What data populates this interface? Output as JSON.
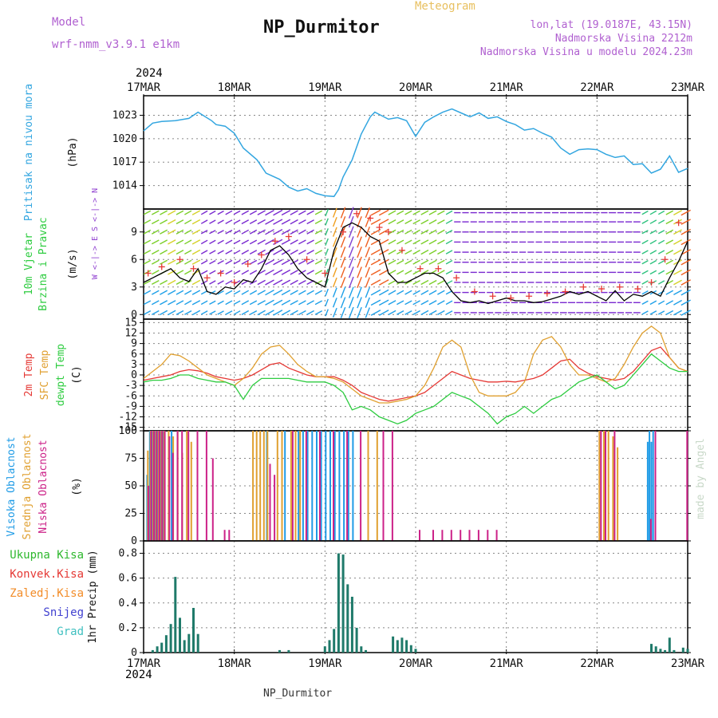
{
  "header": {
    "model_label": "Model",
    "model_name": "wrf-nmm_v3.9.1 e1km",
    "title": "NP_Durmitor",
    "subtitle": "Meteogram",
    "coords": "lon,lat (19.0187E, 43.15N)",
    "altitude": "Nadmorska Visina 2212m",
    "model_altitude": "Nadmorska Visina u modelu 2024.23m"
  },
  "footer": {
    "station": "NP_Durmitor",
    "credit": "made by Angel"
  },
  "time_axis": {
    "year": "2024",
    "labels": [
      "17MAR",
      "18MAR",
      "19MAR",
      "20MAR",
      "21MAR",
      "22MAR",
      "23MAR"
    ]
  },
  "colors": {
    "pressure": "#33a6e0",
    "wind_speed": "#000000",
    "gust": "#e53935",
    "t2m": "#e53935",
    "tsfc": "#e0a030",
    "dewpt": "#2ecc40",
    "cloud_high": "#1e9be6",
    "cloud_mid": "#e0a030",
    "cloud_low": "#cc2288",
    "precip_total": "#2eb82e",
    "precip_conv": "#e53935",
    "precip_frozen": "#f28c28",
    "precip_snow": "#4040d0",
    "precip_hail": "#40c0c0",
    "precip_bar": "#1f7a6a"
  },
  "chart_data": [
    {
      "type": "line",
      "id": "pressure",
      "ylabel": "Pritisak na nivou mora",
      "unit": "(hPa)",
      "ylim": [
        1011,
        1025.5
      ],
      "yticks": [
        1014,
        1017,
        1020,
        1023
      ],
      "x_days": [
        0,
        0.1,
        0.2,
        0.35,
        0.5,
        0.6,
        0.75,
        0.8,
        0.9,
        1.0,
        1.1,
        1.25,
        1.35,
        1.5,
        1.6,
        1.7,
        1.8,
        1.9,
        2.0,
        2.1,
        2.15,
        2.2,
        2.3,
        2.4,
        2.5,
        2.55,
        2.6,
        2.7,
        2.8,
        2.9,
        3.0,
        3.1,
        3.2,
        3.3,
        3.4,
        3.5,
        3.6,
        3.7,
        3.8,
        3.9,
        4.0,
        4.1,
        4.2,
        4.3,
        4.4,
        4.5,
        4.6,
        4.7,
        4.8,
        4.9,
        5.0,
        5.1,
        5.2,
        5.3,
        5.4,
        5.5,
        5.6,
        5.7,
        5.8,
        5.9,
        6.0
      ],
      "values": [
        1021,
        1022,
        1022.2,
        1022.3,
        1022.6,
        1023.4,
        1022.3,
        1021.8,
        1021.6,
        1020.7,
        1018.8,
        1017.3,
        1015.6,
        1014.8,
        1013.8,
        1013.3,
        1013.6,
        1013.0,
        1012.7,
        1012.6,
        1013.5,
        1015.1,
        1017.3,
        1020.6,
        1022.8,
        1023.4,
        1023.1,
        1022.5,
        1022.7,
        1022.3,
        1020.3,
        1022.1,
        1022.8,
        1023.4,
        1023.8,
        1023.3,
        1022.8,
        1023.3,
        1022.6,
        1022.8,
        1022.2,
        1021.8,
        1021.1,
        1021.3,
        1020.7,
        1020.2,
        1018.8,
        1018.0,
        1018.6,
        1018.7,
        1018.6,
        1018.0,
        1017.6,
        1017.8,
        1016.7,
        1016.8,
        1015.6,
        1016.1,
        1017.8,
        1015.7,
        1016.2
      ]
    },
    {
      "type": "line",
      "id": "wind",
      "ylabel": "10m Vjetar Brzina i Pravac",
      "unit": "(m/s)",
      "compass": "W <-|-> E  S <-|-> N",
      "ylim": [
        -0.5,
        11.5
      ],
      "yticks": [
        0,
        3,
        6,
        9
      ],
      "series": [
        {
          "role": "speed",
          "x_days": [
            0,
            0.1,
            0.2,
            0.3,
            0.4,
            0.5,
            0.6,
            0.7,
            0.8,
            0.9,
            1.0,
            1.1,
            1.2,
            1.3,
            1.4,
            1.5,
            1.6,
            1.7,
            1.8,
            1.9,
            2.0,
            2.1,
            2.2,
            2.3,
            2.4,
            2.5,
            2.6,
            2.7,
            2.8,
            2.9,
            3.0,
            3.1,
            3.2,
            3.3,
            3.4,
            3.5,
            3.6,
            3.7,
            3.8,
            3.9,
            4.0,
            4.1,
            4.2,
            4.3,
            4.4,
            4.5,
            4.6,
            4.7,
            4.8,
            4.9,
            5.0,
            5.1,
            5.2,
            5.3,
            5.4,
            5.5,
            5.6,
            5.7,
            5.8,
            5.9,
            6.0
          ],
          "values": [
            3.5,
            4.0,
            4.5,
            5.0,
            4.0,
            3.6,
            5.0,
            2.5,
            2.2,
            3.0,
            2.8,
            3.8,
            3.5,
            5.0,
            7.0,
            7.5,
            6.5,
            5.0,
            4.0,
            3.5,
            3.0,
            7.0,
            9.5,
            10.0,
            9.5,
            8.5,
            8.0,
            4.5,
            3.5,
            3.5,
            4.0,
            4.5,
            4.5,
            4.0,
            2.5,
            1.5,
            1.3,
            1.5,
            1.2,
            1.5,
            1.8,
            1.5,
            1.5,
            1.3,
            1.4,
            1.7,
            2.0,
            2.5,
            2.2,
            2.5,
            2.0,
            1.5,
            2.6,
            1.5,
            2.2,
            2.0,
            2.5,
            2.0,
            4.0,
            5.8,
            8.0
          ]
        },
        {
          "role": "gust",
          "x_days": [
            0.05,
            0.2,
            0.4,
            0.55,
            0.7,
            0.85,
            1.0,
            1.15,
            1.3,
            1.45,
            1.6,
            1.8,
            2.0,
            2.2,
            2.35,
            2.5,
            2.6,
            2.7,
            2.85,
            3.05,
            3.25,
            3.45,
            3.65,
            3.85,
            4.05,
            4.25,
            4.45,
            4.65,
            4.85,
            5.05,
            5.25,
            5.45,
            5.6,
            5.75,
            5.9
          ],
          "values": [
            4.5,
            5.2,
            6.0,
            5.0,
            4.0,
            4.5,
            3.5,
            5.5,
            6.5,
            8.0,
            8.5,
            6.0,
            4.5,
            9.0,
            11.0,
            10.5,
            9.5,
            9.0,
            7.0,
            5.0,
            5.0,
            4.0,
            2.5,
            2.0,
            1.8,
            2.0,
            2.3,
            2.5,
            3.0,
            2.8,
            3.0,
            2.8,
            3.5,
            6.0,
            10.0
          ]
        }
      ]
    },
    {
      "type": "line",
      "id": "temperature",
      "ylabels": [
        "2m Temp",
        "SFC Temp",
        "dewpt Temp"
      ],
      "unit": "(C)",
      "ylim": [
        -16,
        16
      ],
      "yticks": [
        -15,
        -12,
        -9,
        -6,
        -3,
        0,
        3,
        6,
        9,
        12,
        15
      ],
      "x_days": [
        0,
        0.1,
        0.2,
        0.3,
        0.4,
        0.5,
        0.6,
        0.7,
        0.8,
        0.9,
        1.0,
        1.1,
        1.2,
        1.3,
        1.4,
        1.5,
        1.6,
        1.7,
        1.8,
        1.9,
        2.0,
        2.1,
        2.2,
        2.3,
        2.4,
        2.5,
        2.6,
        2.7,
        2.8,
        2.9,
        3.0,
        3.1,
        3.2,
        3.3,
        3.4,
        3.5,
        3.6,
        3.7,
        3.8,
        3.9,
        4.0,
        4.1,
        4.2,
        4.3,
        4.4,
        4.5,
        4.6,
        4.7,
        4.8,
        4.9,
        5.0,
        5.1,
        5.2,
        5.3,
        5.4,
        5.5,
        5.6,
        5.7,
        5.8,
        5.9,
        6.0
      ],
      "series": [
        {
          "name": "2m Temp",
          "values": [
            -1.5,
            -1,
            -0.5,
            0,
            1,
            1.5,
            1.2,
            0.5,
            -0.5,
            -1,
            -1.5,
            -1,
            0,
            1.5,
            3,
            3.5,
            2,
            1,
            0,
            -0.5,
            -0.5,
            -0.5,
            -1.5,
            -3,
            -5,
            -6,
            -7,
            -7.5,
            -7,
            -6.5,
            -6,
            -5,
            -3,
            -1,
            1,
            0,
            -1,
            -1.5,
            -2,
            -2,
            -1.8,
            -2,
            -1.5,
            -1,
            0,
            2,
            4,
            4.5,
            2,
            0.5,
            -0.5,
            -1,
            -1.5,
            -1,
            1,
            4,
            7,
            8,
            5,
            2,
            1
          ]
        },
        {
          "name": "SFC Temp",
          "values": [
            -1,
            1,
            3,
            6,
            5.5,
            4,
            2,
            0,
            -1,
            -2,
            -3,
            -1,
            2,
            6,
            8,
            8.5,
            6,
            3,
            1,
            -0.5,
            -0.5,
            -1,
            -2,
            -4,
            -6,
            -7,
            -8,
            -8,
            -7.5,
            -7,
            -6,
            -3,
            2,
            8,
            10,
            8,
            0,
            -5,
            -6,
            -6,
            -6,
            -5,
            -2,
            6,
            10,
            11,
            8,
            3,
            0,
            0,
            -1,
            -2,
            -1,
            3,
            8,
            12,
            14,
            12,
            5,
            2,
            1
          ]
        },
        {
          "name": "dewpt Temp",
          "values": [
            -2,
            -1.5,
            -1.5,
            -1,
            0,
            0,
            -1,
            -1.5,
            -2,
            -2,
            -3,
            -7,
            -3,
            -1,
            -1,
            -1,
            -1,
            -1.5,
            -2,
            -2,
            -2,
            -3,
            -5,
            -10,
            -9,
            -10,
            -12,
            -13,
            -14,
            -13,
            -11,
            -10,
            -9,
            -7,
            -5,
            -6,
            -7,
            -9,
            -11,
            -14,
            -12,
            -11,
            -9,
            -11,
            -9,
            -7,
            -6,
            -4,
            -2,
            -1,
            0,
            -2,
            -4,
            -3,
            0,
            3,
            6,
            4,
            2,
            1,
            1
          ]
        }
      ]
    },
    {
      "type": "bar",
      "id": "cloud",
      "ylabels": [
        "Visoka Oblacnost",
        "Srednja Oblacnost",
        "Niska Oblacnost"
      ],
      "unit": "(%)",
      "ylim": [
        0,
        100
      ],
      "yticks": [
        0,
        25,
        50,
        75,
        100
      ],
      "series": [
        {
          "name": "Visoka Oblacnost",
          "x_days": [
            0.03,
            0.06,
            0.09,
            0.12,
            0.15,
            0.18,
            0.21,
            0.3,
            1.35,
            1.55,
            1.7,
            1.75,
            1.8,
            1.85,
            1.9,
            1.95,
            2.0,
            2.05,
            2.1,
            2.15,
            2.2,
            2.25,
            2.3,
            5.55,
            5.57,
            5.59,
            5.61
          ],
          "values": [
            60,
            100,
            100,
            100,
            100,
            100,
            100,
            100,
            100,
            100,
            100,
            100,
            100,
            100,
            100,
            100,
            100,
            100,
            100,
            100,
            100,
            100,
            100,
            90,
            100,
            90,
            100
          ]
        },
        {
          "name": "Srednja Oblacnost",
          "x_days": [
            0.02,
            0.05,
            0.08,
            0.11,
            0.14,
            0.17,
            0.2,
            0.25,
            0.3,
            0.35,
            0.4,
            0.45,
            0.5,
            1.18,
            1.22,
            1.26,
            1.3,
            1.34,
            1.45,
            1.5,
            1.6,
            1.65,
            1.7,
            2.45,
            2.55,
            5.0,
            5.05,
            5.1,
            5.15,
            5.2
          ],
          "values": [
            82,
            100,
            100,
            100,
            100,
            100,
            100,
            100,
            95,
            100,
            80,
            100,
            90,
            100,
            100,
            100,
            100,
            100,
            100,
            100,
            100,
            100,
            100,
            100,
            100,
            100,
            100,
            100,
            95,
            85
          ]
        },
        {
          "name": "Niska Oblacnost",
          "x_days": [
            0.01,
            0.04,
            0.07,
            0.1,
            0.13,
            0.16,
            0.19,
            0.24,
            0.28,
            0.33,
            0.38,
            0.45,
            0.55,
            0.65,
            0.72,
            0.85,
            0.9,
            1.35,
            1.4,
            1.6,
            1.75,
            1.9,
            2.05,
            2.2,
            2.35,
            2.6,
            2.7,
            3.0,
            3.15,
            3.25,
            3.35,
            3.45,
            3.55,
            3.65,
            3.75,
            3.85,
            5.0,
            5.05,
            5.15,
            5.55,
            5.6,
            5.95
          ],
          "values": [
            50,
            100,
            100,
            100,
            100,
            100,
            100,
            95,
            80,
            100,
            100,
            100,
            100,
            100,
            75,
            10,
            10,
            70,
            60,
            100,
            100,
            100,
            100,
            100,
            100,
            100,
            100,
            10,
            10,
            10,
            10,
            10,
            10,
            10,
            10,
            10,
            100,
            100,
            100,
            20,
            100,
            100
          ]
        }
      ]
    },
    {
      "type": "bar",
      "id": "precip",
      "ylabel": "1hr Precip",
      "unit": "(mm)",
      "legend": [
        "Ukupna Kisa",
        "Konvek.Kisa",
        "Zaledj.Kisa",
        "Snijeg",
        "Grad"
      ],
      "ylim": [
        0,
        0.9
      ],
      "yticks": [
        0,
        0.2,
        0.4,
        0.6,
        0.8
      ],
      "x_days": [
        0.1,
        0.15,
        0.2,
        0.25,
        0.3,
        0.35,
        0.4,
        0.45,
        0.5,
        0.55,
        0.6,
        1.5,
        1.6,
        2.0,
        2.05,
        2.1,
        2.15,
        2.2,
        2.25,
        2.3,
        2.35,
        2.4,
        2.45,
        2.75,
        2.8,
        2.85,
        2.9,
        2.95,
        3.0,
        5.6,
        5.65,
        5.7,
        5.75,
        5.8,
        5.85,
        5.95,
        6.0
      ],
      "values": [
        0.02,
        0.05,
        0.08,
        0.14,
        0.23,
        0.61,
        0.28,
        0.1,
        0.15,
        0.36,
        0.15,
        0.02,
        0.02,
        0.05,
        0.1,
        0.19,
        0.8,
        0.79,
        0.55,
        0.45,
        0.2,
        0.05,
        0.02,
        0.13,
        0.1,
        0.12,
        0.1,
        0.06,
        0.03,
        0.07,
        0.05,
        0.03,
        0.02,
        0.12,
        0.02,
        0.04,
        0.03
      ]
    }
  ]
}
